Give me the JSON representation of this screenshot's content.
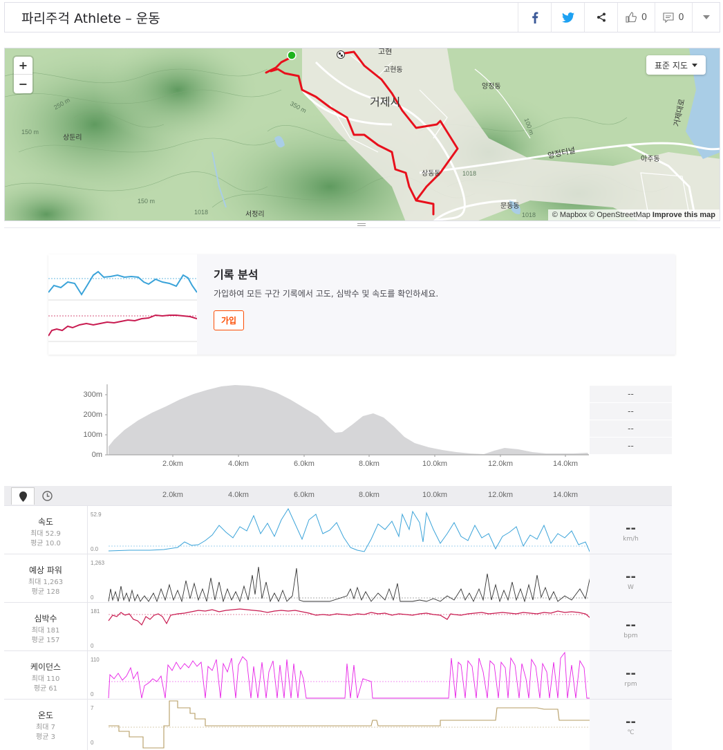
{
  "header": {
    "title": "파리주걱 Athlete – 운동",
    "kudos_count": "0",
    "comment_count": "0"
  },
  "map": {
    "zoom_in": "+",
    "zoom_out": "−",
    "map_type": "표준 지도",
    "attribution": "© Mapbox © OpenStreetMap",
    "improve": "Improve this map",
    "labels": {
      "geoje_city": "거제시",
      "gohyeon_dong": "고현동",
      "gohyeon": "고현",
      "yangjeong_dong": "양정동",
      "sangdong_dong": "상동동",
      "mundong_dong": "문동동",
      "aju_dong": "아주동",
      "sangdun_ri": "상둔리",
      "seojeong_ri": "서정리",
      "yangji_tunnel": "양정터널",
      "geoje_bridge": "거제대로",
      "c250": "250 m",
      "c150a": "150 m",
      "c150b": "150 m",
      "c350": "350 m",
      "c100": "100 m",
      "road1018a": "1018",
      "road1018b": "1018",
      "road1018c": "1018"
    }
  },
  "promo": {
    "title": "기록 분석",
    "text": "가입하여 모든 구간 기록에서 고도, 심박수 및 속도를 확인하세요.",
    "button": "가입"
  },
  "elevation": {
    "y_ticks": [
      "300m",
      "200m",
      "100m",
      "0m"
    ],
    "x_ticks": [
      "2.0km",
      "4.0km",
      "6.0km",
      "8.0km",
      "10.0km",
      "12.0km",
      "14.0km"
    ],
    "stats": [
      "--",
      "--",
      "--",
      "--"
    ]
  },
  "streams": {
    "x_ticks": [
      "2.0km",
      "4.0km",
      "6.0km",
      "8.0km",
      "10.0km",
      "12.0km",
      "14.0km"
    ],
    "speed": {
      "name": "속도",
      "max": "최대 52.9",
      "avg": "평균 10.0",
      "top": "52.9",
      "bottom": "0.0",
      "value": "--",
      "unit": "km/h"
    },
    "power": {
      "name": "예상 파워",
      "max": "최대 1,263",
      "avg": "평균 128",
      "top": "1,263",
      "bottom": "0",
      "value": "--",
      "unit": "W"
    },
    "hr": {
      "name": "심박수",
      "max": "최대 181",
      "avg": "평균 157",
      "top": "181",
      "bottom": "0",
      "value": "--",
      "unit": "bpm"
    },
    "cadence": {
      "name": "케이던스",
      "max": "최대 110",
      "avg": "평균 61",
      "top": "110",
      "bottom": "0",
      "value": "--",
      "unit": "rpm"
    },
    "temp": {
      "name": "온도",
      "max": "최대 7",
      "avg": "평균 3",
      "top": "7",
      "bottom": "0",
      "value": "--",
      "unit": "℃"
    }
  },
  "colors": {
    "brand": "#fc4c02",
    "speed": "#3aa3d9",
    "power": "#333333",
    "hr": "#c8194f",
    "cadence": "#e61ee6",
    "temp": "#b49b62",
    "route": "#e8101c",
    "elevation_fill": "#d6d6d8"
  }
}
